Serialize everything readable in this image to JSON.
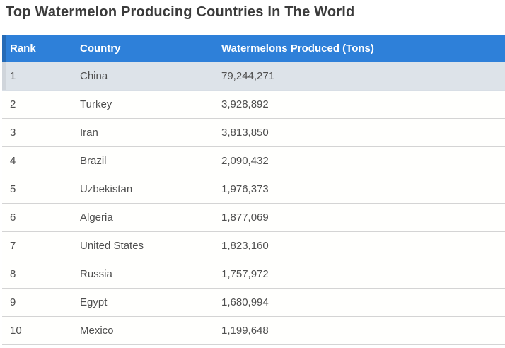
{
  "title": "Top Watermelon Producing Countries In The World",
  "table": {
    "columns": [
      "Rank",
      "Country",
      "Watermelons Produced (Tons)"
    ],
    "rows": [
      {
        "rank": "1",
        "country": "China",
        "tons": "79,244,271"
      },
      {
        "rank": "2",
        "country": "Turkey",
        "tons": "3,928,892"
      },
      {
        "rank": "3",
        "country": "Iran",
        "tons": "3,813,850"
      },
      {
        "rank": "4",
        "country": "Brazil",
        "tons": "2,090,432"
      },
      {
        "rank": "5",
        "country": "Uzbekistan",
        "tons": "1,976,373"
      },
      {
        "rank": "6",
        "country": "Algeria",
        "tons": "1,877,069"
      },
      {
        "rank": "7",
        "country": "United States",
        "tons": "1,823,160"
      },
      {
        "rank": "8",
        "country": "Russia",
        "tons": "1,757,972"
      },
      {
        "rank": "9",
        "country": "Egypt",
        "tons": "1,680,994"
      },
      {
        "rank": "10",
        "country": "Mexico",
        "tons": "1,199,648"
      }
    ]
  },
  "chart_data": {
    "type": "table",
    "title": "Top Watermelon Producing Countries In The World",
    "columns": [
      "Rank",
      "Country",
      "Watermelons Produced (Tons)"
    ],
    "rows": [
      [
        1,
        "China",
        79244271
      ],
      [
        2,
        "Turkey",
        3928892
      ],
      [
        3,
        "Iran",
        3813850
      ],
      [
        4,
        "Brazil",
        2090432
      ],
      [
        5,
        "Uzbekistan",
        1976373
      ],
      [
        6,
        "Algeria",
        1877069
      ],
      [
        7,
        "United States",
        1823160
      ],
      [
        8,
        "Russia",
        1757972
      ],
      [
        9,
        "Egypt",
        1680994
      ],
      [
        10,
        "Mexico",
        1199648
      ]
    ]
  },
  "colors": {
    "header_bg": "#2e80d9",
    "header_text": "#ffffff",
    "highlight_row_bg": "#dde3e9",
    "row_border": "#d4d4d4",
    "title_text": "#3b3b3b",
    "body_text": "#4f4f4f"
  }
}
